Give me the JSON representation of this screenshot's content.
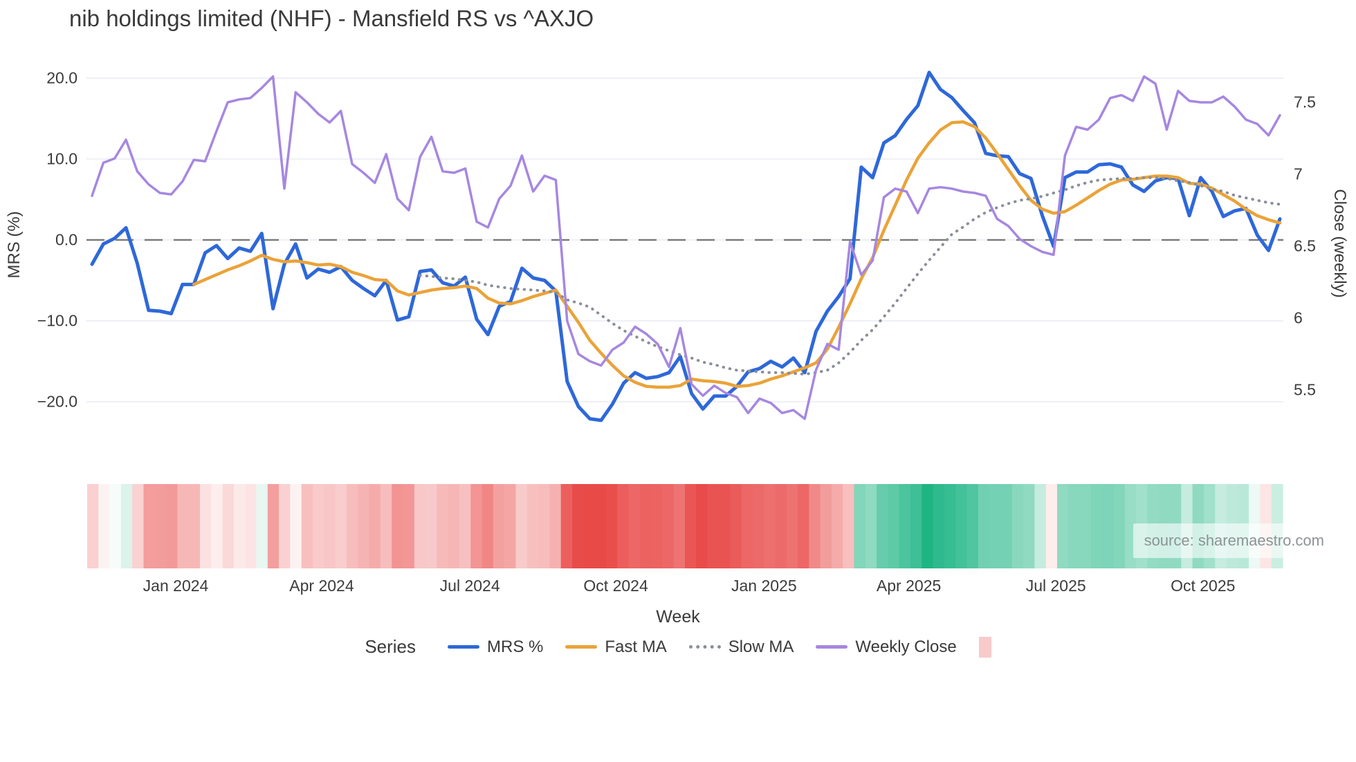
{
  "header": {
    "title": "nib holdings limited (NHF) - Mansfield RS vs ^AXJO"
  },
  "axes": {
    "left": {
      "title": "MRS (%)",
      "ticks": [
        {
          "label": "20.0",
          "value": 20
        },
        {
          "label": "10.0",
          "value": 10
        },
        {
          "label": "0.0",
          "value": 0
        },
        {
          "label": "−10.0",
          "value": -10
        },
        {
          "label": "−20.0",
          "value": -20
        }
      ]
    },
    "right": {
      "title": "Close (weekly)",
      "ticks": [
        {
          "label": "7.5",
          "value": 7.5
        },
        {
          "label": "7",
          "value": 7
        },
        {
          "label": "6.5",
          "value": 6.5
        },
        {
          "label": "6",
          "value": 6
        },
        {
          "label": "5.5",
          "value": 5.5
        }
      ]
    },
    "x": {
      "title": "Week",
      "ticks": [
        {
          "label": "Jan 2024",
          "week": 7.4
        },
        {
          "label": "Apr 2024",
          "week": 20.3
        },
        {
          "label": "Jul 2024",
          "week": 33.4
        },
        {
          "label": "Oct 2024",
          "week": 46.3
        },
        {
          "label": "Jan 2025",
          "week": 59.4
        },
        {
          "label": "Apr 2025",
          "week": 72.2
        },
        {
          "label": "Jul 2025",
          "week": 85.2
        },
        {
          "label": "Oct 2025",
          "week": 98.2
        }
      ]
    }
  },
  "legend": {
    "title": "Series",
    "items": [
      {
        "label": "MRS %",
        "color": "#2e68d9",
        "style": "solid"
      },
      {
        "label": "Fast MA",
        "color": "#eaa339",
        "style": "solid"
      },
      {
        "label": "Slow MA",
        "color": "#8a8f98",
        "style": "dotted"
      },
      {
        "label": "Weekly Close",
        "color": "#a687e0",
        "style": "solid"
      }
    ],
    "heatmap_swatch_color": "#f8caca"
  },
  "source": {
    "label": "source: sharemaestro.com"
  },
  "colors": {
    "gridline": "#e9ebf2",
    "zero_line": "#7a7a7a",
    "tick_text": "#3b3b3b",
    "heatmap_negative": "#e84a48",
    "heatmap_positive": "#1cb482"
  },
  "chart_data": {
    "type": "line",
    "title": "nib holdings limited (NHF) - Mansfield RS vs ^AXJO",
    "xlabel": "Week",
    "ylabel_left": "MRS (%)",
    "ylabel_right": "Close (weekly)",
    "x_tick_labels": [
      "Jan 2024",
      "Apr 2024",
      "Jul 2024",
      "Oct 2024",
      "Jan 2025",
      "Apr 2025",
      "Jul 2025",
      "Oct 2025"
    ],
    "left_axis_ticks": [
      20.0,
      10.0,
      0.0,
      -10.0,
      -20.0
    ],
    "right_axis_ticks": [
      7.5,
      7.0,
      6.5,
      6.0,
      5.5
    ],
    "left_ylim": [
      -25,
      22
    ],
    "right_ylim": [
      5.25,
      7.85
    ],
    "weeks_total": 106,
    "legend_position": "bottom",
    "grid": "horizontal-only",
    "zero_reference_line": true,
    "series": [
      {
        "name": "MRS %",
        "axis": "left",
        "color": "#2e68d9",
        "width": 5,
        "dash": "solid",
        "start_week": 0,
        "values": [
          -3.0,
          -0.5,
          0.2,
          1.5,
          -2.9,
          -8.7,
          -8.8,
          -9.1,
          -5.5,
          -5.5,
          -1.6,
          -0.7,
          -2.3,
          -1.0,
          -1.4,
          0.8,
          -8.5,
          -3.0,
          -0.5,
          -4.7,
          -3.6,
          -4.0,
          -3.3,
          -5.0,
          -6.0,
          -6.9,
          -5.0,
          -9.9,
          -9.5,
          -3.9,
          -3.7,
          -5.3,
          -5.7,
          -4.6,
          -9.8,
          -11.7,
          -8.2,
          -7.6,
          -3.5,
          -4.7,
          -5.0,
          -6.3,
          -17.5,
          -20.6,
          -22.1,
          -22.3,
          -20.3,
          -17.7,
          -16.4,
          -17.1,
          -16.9,
          -16.4,
          -14.4,
          -19.0,
          -20.9,
          -19.3,
          -19.3,
          -18.1,
          -16.3,
          -15.9,
          -15.0,
          -15.7,
          -14.6,
          -16.4,
          -11.3,
          -8.8,
          -7.0,
          -4.8,
          9.0,
          7.7,
          12.0,
          12.9,
          14.9,
          16.6,
          20.7,
          18.6,
          17.6,
          16.0,
          14.5,
          10.7,
          10.4,
          10.3,
          8.2,
          7.6,
          3.0,
          -0.8,
          7.7,
          8.4,
          8.4,
          9.3,
          9.4,
          9.0,
          6.8,
          6.0,
          7.3,
          7.7,
          7.6,
          3.0,
          7.7,
          6.0,
          2.9,
          3.6,
          3.9,
          0.6,
          -1.3,
          2.6
        ]
      },
      {
        "name": "Fast MA",
        "axis": "left",
        "color": "#eaa339",
        "width": 4.5,
        "dash": "solid",
        "start_week": 9,
        "values": [
          -5.5,
          -4.9,
          -4.3,
          -3.7,
          -3.2,
          -2.6,
          -1.9,
          -2.4,
          -2.7,
          -2.6,
          -2.8,
          -3.1,
          -3.0,
          -3.3,
          -4.0,
          -4.4,
          -4.9,
          -5.0,
          -6.3,
          -6.8,
          -6.5,
          -6.2,
          -6.0,
          -5.9,
          -5.7,
          -6.0,
          -7.2,
          -7.8,
          -7.9,
          -7.5,
          -7.0,
          -6.6,
          -6.2,
          -8.2,
          -10.2,
          -12.4,
          -14.0,
          -15.5,
          -16.8,
          -17.6,
          -18.1,
          -18.2,
          -18.2,
          -18.0,
          -17.2,
          -17.4,
          -17.5,
          -17.7,
          -18.1,
          -18.0,
          -17.7,
          -17.2,
          -16.8,
          -16.3,
          -15.8,
          -15.2,
          -13.5,
          -10.8,
          -7.9,
          -4.8,
          -2.2,
          1.2,
          4.3,
          7.4,
          10.1,
          12.0,
          13.6,
          14.5,
          14.6,
          14.0,
          12.6,
          10.7,
          8.7,
          6.7,
          4.9,
          3.8,
          3.3,
          3.5,
          4.3,
          5.2,
          6.1,
          6.9,
          7.4,
          7.5,
          7.7,
          7.9,
          7.9,
          7.7,
          7.0,
          6.9,
          6.4,
          5.6,
          4.8,
          3.8,
          3.0,
          2.5,
          2.1
        ]
      },
      {
        "name": "Slow MA",
        "axis": "left",
        "color": "#8a8f98",
        "width": 4,
        "dash": "dotted",
        "start_week": 29,
        "values": [
          -4.4,
          -4.5,
          -4.7,
          -4.8,
          -5.0,
          -5.2,
          -5.6,
          -5.8,
          -6.0,
          -6.1,
          -6.2,
          -6.3,
          -6.5,
          -7.4,
          -7.8,
          -8.3,
          -9.3,
          -10.3,
          -11.2,
          -11.9,
          -12.6,
          -13.2,
          -13.7,
          -14.2,
          -14.6,
          -15.1,
          -15.4,
          -15.8,
          -16.1,
          -16.2,
          -16.3,
          -16.4,
          -16.4,
          -16.5,
          -16.6,
          -16.4,
          -16.1,
          -15.2,
          -13.9,
          -12.4,
          -11.1,
          -9.5,
          -7.8,
          -6.0,
          -4.2,
          -2.5,
          -0.9,
          0.7,
          1.6,
          2.6,
          3.4,
          4.0,
          4.5,
          4.9,
          5.1,
          5.4,
          5.8,
          6.2,
          6.7,
          7.1,
          7.4,
          7.5,
          7.6,
          7.6,
          7.7,
          7.7,
          7.6,
          7.3,
          7.1,
          6.7,
          6.3,
          6.0,
          5.5,
          5.2,
          4.9,
          4.6,
          4.4
        ]
      },
      {
        "name": "Weekly Close",
        "axis": "right",
        "color": "#a687e0",
        "width": 3.5,
        "dash": "solid",
        "start_week": 0,
        "values": [
          6.85,
          7.08,
          7.11,
          7.24,
          7.02,
          6.93,
          6.87,
          6.86,
          6.95,
          7.1,
          7.09,
          7.3,
          7.5,
          7.52,
          7.53,
          7.6,
          7.68,
          6.9,
          7.57,
          7.5,
          7.42,
          7.36,
          7.44,
          7.07,
          7.01,
          6.94,
          7.14,
          6.83,
          6.75,
          7.12,
          7.26,
          7.02,
          7.01,
          7.04,
          6.67,
          6.63,
          6.83,
          6.92,
          7.13,
          6.88,
          6.99,
          6.96,
          5.98,
          5.75,
          5.7,
          5.67,
          5.78,
          5.83,
          5.94,
          5.89,
          5.82,
          5.66,
          5.93,
          5.54,
          5.46,
          5.53,
          5.48,
          5.45,
          5.34,
          5.44,
          5.41,
          5.34,
          5.36,
          5.3,
          5.64,
          5.82,
          5.78,
          6.53,
          6.3,
          6.4,
          6.84,
          6.9,
          6.88,
          6.73,
          6.9,
          6.91,
          6.9,
          6.88,
          6.87,
          6.85,
          6.69,
          6.64,
          6.55,
          6.5,
          6.46,
          6.44,
          7.13,
          7.33,
          7.31,
          7.38,
          7.53,
          7.55,
          7.51,
          7.68,
          7.63,
          7.31,
          7.58,
          7.51,
          7.5,
          7.5,
          7.54,
          7.47,
          7.38,
          7.35,
          7.27,
          7.41
        ]
      }
    ],
    "heatmap": {
      "description": "weekly strip below plot; red intensity for negative MRS %, green intensity for positive MRS %",
      "derived_from": "MRS %",
      "negative_color": "#e84a48",
      "positive_color": "#1cb482"
    }
  }
}
